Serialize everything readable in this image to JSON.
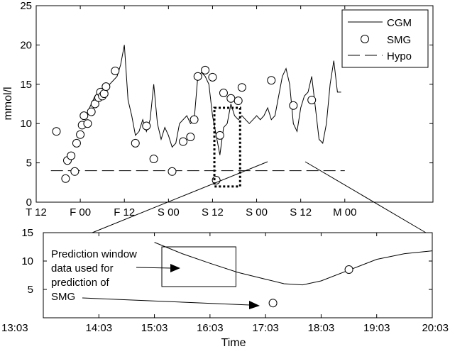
{
  "chart_data": [
    {
      "type": "line",
      "xlabel": "",
      "ylabel": "mmol/l",
      "ylim": [
        0,
        25
      ],
      "yticks": [
        "0",
        "5",
        "10",
        "15",
        "20",
        "25"
      ],
      "x_unit": "hours",
      "xlim": [
        -12,
        96
      ],
      "xticks": [
        {
          "x": -12,
          "label": "T 12"
        },
        {
          "x": 0,
          "label": "F 00"
        },
        {
          "x": 12,
          "label": "F 12"
        },
        {
          "x": 24,
          "label": "S 00"
        },
        {
          "x": 36,
          "label": "S 12"
        },
        {
          "x": 48,
          "label": "S 00"
        },
        {
          "x": 60,
          "label": "S 12"
        },
        {
          "x": 72,
          "label": "M 00"
        }
      ],
      "legend": {
        "placement": "top-right",
        "entries": [
          {
            "label": "CGM",
            "style": "solid-line"
          },
          {
            "label": "SMG",
            "style": "circle-marker"
          },
          {
            "label": "Hypo",
            "style": "dashed-line"
          }
        ]
      },
      "series": [
        {
          "name": "CGM",
          "style": "solid-line",
          "x": [
            2,
            4,
            6,
            8,
            10,
            11,
            12,
            13,
            14,
            15,
            16,
            17,
            18,
            19,
            20,
            21,
            22,
            23,
            24,
            25,
            26,
            27,
            28,
            29,
            30,
            31,
            32,
            33,
            34,
            35,
            36,
            37,
            38,
            39,
            40,
            41,
            42,
            43,
            44,
            45,
            46,
            47,
            48,
            49,
            50,
            51,
            52,
            53,
            54,
            55,
            56,
            57,
            58,
            59,
            60,
            61,
            62,
            63,
            64,
            65,
            66,
            67,
            68,
            69,
            70,
            71
          ],
          "values": [
            11.5,
            13.5,
            14.5,
            15,
            16,
            17.5,
            20,
            13,
            11,
            8.5,
            9,
            10.5,
            9,
            10.5,
            15,
            10,
            8,
            9.5,
            8.5,
            7,
            7.5,
            10,
            10.5,
            11,
            10,
            10.5,
            16,
            16.5,
            16,
            15,
            11,
            8.5,
            6,
            9.5,
            10,
            12.5,
            11,
            10.5,
            11,
            10.5,
            10,
            10.5,
            11,
            10.5,
            11,
            12,
            10.5,
            11,
            13.5,
            16,
            17,
            15,
            10,
            9,
            12,
            13.5,
            14,
            16,
            12,
            8,
            7.5,
            10,
            15,
            18,
            14,
            14
          ]
        },
        {
          "name": "SMG",
          "style": "circle-marker",
          "x": [
            -6.5,
            -4,
            -3.5,
            -2.5,
            -1.5,
            -1,
            0,
            0.5,
            1,
            2,
            3,
            4,
            5,
            5.5,
            6,
            6.5,
            7,
            9.5,
            15,
            18,
            20,
            25,
            28,
            30,
            31,
            32,
            34,
            36,
            37,
            38,
            39,
            41,
            43,
            44,
            52,
            58,
            63
          ],
          "values": [
            9,
            3,
            5.3,
            5.9,
            3.9,
            7.5,
            8.6,
            9.8,
            11,
            10,
            11.5,
            12.5,
            13.3,
            14,
            13.5,
            13.8,
            14.7,
            16.7,
            7.5,
            9.7,
            5.5,
            3.9,
            7.7,
            8.3,
            10.5,
            16,
            16.8,
            15.9,
            2.8,
            8.5,
            13.9,
            13.2,
            12.9,
            14.6,
            15.5,
            12.3,
            13
          ]
        },
        {
          "name": "Hypo",
          "style": "dashed-line",
          "x": [
            -8,
            72
          ],
          "values": [
            4,
            4
          ]
        }
      ],
      "highlight_box": {
        "x": [
          36.5,
          43.5
        ],
        "y": [
          2,
          12
        ],
        "style": "dotted-rectangle"
      }
    },
    {
      "type": "line",
      "xlabel": "Time",
      "ylabel": "",
      "ylim": [
        0,
        15
      ],
      "yticks": [
        "5",
        "10",
        "15"
      ],
      "x_unit": "time-of-day",
      "xticks": [
        "13:03",
        "14:03",
        "15:03",
        "16:03",
        "17:03",
        "18:03",
        "19:03",
        "20:03"
      ],
      "xlim": [
        "13:03",
        "20:03"
      ],
      "series": [
        {
          "name": "CGM",
          "style": "solid-line",
          "x": [
            "15:03",
            "15:33",
            "16:03",
            "16:33",
            "17:03",
            "17:23",
            "17:43",
            "18:03",
            "18:33",
            "19:03",
            "19:33",
            "20:03"
          ],
          "values": [
            13.3,
            11.3,
            9.6,
            8,
            6.8,
            6,
            5.8,
            6.5,
            8.4,
            10.3,
            11.3,
            11.8
          ]
        },
        {
          "name": "SMG",
          "style": "circle-marker",
          "x": [
            "17:11",
            "18:33"
          ],
          "values": [
            2.6,
            8.5
          ]
        }
      ],
      "inner_box": {
        "x": [
          "15:11",
          "16:31"
        ],
        "y": [
          5.5,
          12.5
        ]
      },
      "annotations": [
        {
          "lines": [
            "Prediction window",
            "data used for",
            "prediction of",
            "SMG"
          ]
        }
      ]
    }
  ]
}
